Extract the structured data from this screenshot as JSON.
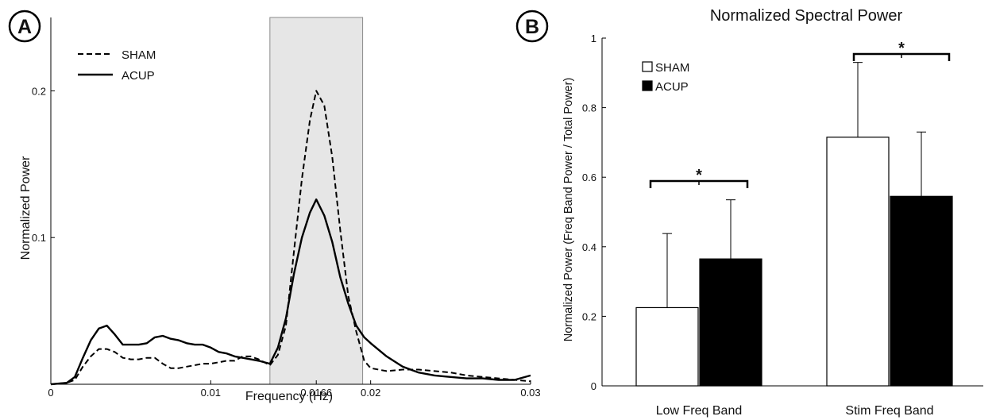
{
  "panels": {
    "a": {
      "label": "A"
    },
    "b": {
      "label": "B"
    }
  },
  "chart_data": [
    {
      "type": "line",
      "panel": "A",
      "title": "",
      "xlabel": "Frequency (Hz)",
      "ylabel": "Normalized Power",
      "xlim": [
        0,
        0.03
      ],
      "ylim": [
        0,
        0.25
      ],
      "xticks": [
        0,
        0.01,
        0.0166,
        0.02,
        0.03
      ],
      "xtick_labels": [
        "0",
        "0.01",
        "0.0166",
        "0.02",
        "0.03"
      ],
      "yticks": [
        0.1,
        0.2
      ],
      "ytick_labels": [
        "0.1",
        "0.2"
      ],
      "shaded_band": [
        0.0137,
        0.0195
      ],
      "legend": {
        "placement": "top-left"
      },
      "series": [
        {
          "name": "SHAM",
          "style": "dashed",
          "color": "#000000",
          "x": [
            0,
            0.001,
            0.0015,
            0.002,
            0.0025,
            0.003,
            0.0035,
            0.004,
            0.0045,
            0.005,
            0.0055,
            0.006,
            0.0065,
            0.007,
            0.0075,
            0.008,
            0.0085,
            0.009,
            0.0095,
            0.01,
            0.0105,
            0.011,
            0.0115,
            0.012,
            0.0125,
            0.013,
            0.0137,
            0.0142,
            0.0147,
            0.0152,
            0.0157,
            0.0162,
            0.0166,
            0.0171,
            0.0176,
            0.0181,
            0.0186,
            0.0191,
            0.0196,
            0.02,
            0.021,
            0.022,
            0.023,
            0.024,
            0.025,
            0.026,
            0.027,
            0.028,
            0.029,
            0.03
          ],
          "y": [
            0,
            0.001,
            0.003,
            0.012,
            0.019,
            0.024,
            0.024,
            0.022,
            0.018,
            0.017,
            0.017,
            0.018,
            0.018,
            0.014,
            0.011,
            0.011,
            0.012,
            0.013,
            0.014,
            0.014,
            0.015,
            0.016,
            0.016,
            0.019,
            0.019,
            0.017,
            0.013,
            0.02,
            0.04,
            0.09,
            0.14,
            0.18,
            0.2,
            0.19,
            0.155,
            0.105,
            0.06,
            0.036,
            0.016,
            0.011,
            0.009,
            0.01,
            0.01,
            0.009,
            0.008,
            0.006,
            0.005,
            0.004,
            0.003,
            0.002
          ]
        },
        {
          "name": "ACUP",
          "style": "solid",
          "color": "#000000",
          "x": [
            0,
            0.001,
            0.0015,
            0.002,
            0.0025,
            0.003,
            0.0035,
            0.004,
            0.0045,
            0.005,
            0.0055,
            0.006,
            0.0065,
            0.007,
            0.0075,
            0.008,
            0.0085,
            0.009,
            0.0095,
            0.01,
            0.0105,
            0.011,
            0.0115,
            0.012,
            0.0125,
            0.013,
            0.0137,
            0.0142,
            0.0147,
            0.0152,
            0.0157,
            0.0162,
            0.0166,
            0.0171,
            0.0176,
            0.0181,
            0.0186,
            0.0191,
            0.0196,
            0.02,
            0.021,
            0.022,
            0.023,
            0.024,
            0.025,
            0.026,
            0.027,
            0.028,
            0.029,
            0.03
          ],
          "y": [
            0,
            0.001,
            0.005,
            0.018,
            0.03,
            0.038,
            0.04,
            0.034,
            0.027,
            0.027,
            0.027,
            0.028,
            0.032,
            0.033,
            0.031,
            0.03,
            0.028,
            0.027,
            0.027,
            0.025,
            0.022,
            0.021,
            0.019,
            0.018,
            0.017,
            0.016,
            0.014,
            0.025,
            0.045,
            0.075,
            0.1,
            0.117,
            0.126,
            0.115,
            0.097,
            0.073,
            0.055,
            0.04,
            0.032,
            0.028,
            0.019,
            0.012,
            0.008,
            0.006,
            0.005,
            0.004,
            0.004,
            0.003,
            0.003,
            0.006
          ]
        }
      ]
    },
    {
      "type": "bar",
      "panel": "B",
      "title": "Normalized Spectral Power",
      "xlabel": "",
      "ylabel": "Normalized Power (Freq Band Power / Total Power)",
      "ylim": [
        0,
        1
      ],
      "yticks": [
        0,
        0.2,
        0.4,
        0.6,
        0.8,
        1
      ],
      "ytick_labels": [
        "0",
        "0.2",
        "0.4",
        "0.6",
        "0.8",
        "1"
      ],
      "categories": [
        "Low Freq Band",
        "Stim Freq Band"
      ],
      "legend": {
        "placement": "top-left"
      },
      "series": [
        {
          "name": "SHAM",
          "color": "#ffffff",
          "values": [
            0.225,
            0.715
          ],
          "errors": [
            0.213,
            0.215
          ]
        },
        {
          "name": "ACUP",
          "color": "#000000",
          "values": [
            0.365,
            0.545
          ],
          "errors": [
            0.17,
            0.185
          ]
        }
      ],
      "significance": [
        "*",
        "*"
      ]
    }
  ]
}
